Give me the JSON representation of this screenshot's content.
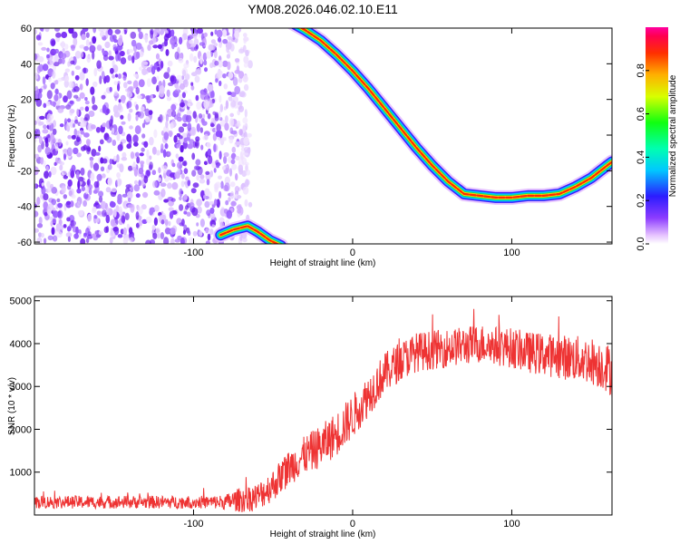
{
  "title": "YM08.2026.046.02.10.E11",
  "chart_data": [
    {
      "type": "heatmap",
      "title": "YM08.2026.046.02.10.E11",
      "xlabel": "Height of straight line (km)",
      "ylabel": "Frequency (Hz)",
      "xlim": [
        -200,
        163
      ],
      "ylim": [
        -61,
        60
      ],
      "xticks": [
        -100,
        0,
        100
      ],
      "xtick_labels": [
        "-100",
        "0",
        "100"
      ],
      "yticks": [
        -60,
        -40,
        -20,
        0,
        20,
        40,
        60
      ],
      "ytick_labels": [
        "-60",
        "-40",
        "-20",
        "0",
        "20",
        "40",
        "60"
      ],
      "colorbar": {
        "label": "Normalized spectral amplitude",
        "range": [
          0,
          1
        ],
        "ticks": [
          0.0,
          0.2,
          0.4,
          0.6,
          0.8
        ],
        "tick_labels": [
          "0.0",
          "0.2",
          "0.4",
          "0.6",
          "0.8"
        ]
      },
      "noise_region_x": [
        -200,
        -70
      ],
      "trace": {
        "x": [
          -83,
          -75,
          -66,
          -60,
          -52,
          -45,
          -40,
          -30,
          -20,
          -10,
          0,
          10,
          20,
          30,
          40,
          50,
          60,
          70,
          80,
          90,
          100,
          110,
          120,
          130,
          140,
          150,
          160,
          163
        ],
        "frequency": [
          -56,
          -53,
          -51,
          -54,
          -59,
          -62,
          64,
          59,
          53,
          45,
          36,
          26,
          15,
          4,
          -7,
          -17,
          -26,
          -33,
          -34,
          -35,
          -35,
          -34,
          -34,
          -33,
          -29,
          -24,
          -17,
          -15
        ]
      }
    },
    {
      "type": "line",
      "xlabel": "Height of straight line (km)",
      "ylabel": "SNR (10 * v/v)",
      "xlim": [
        -200,
        163
      ],
      "ylim": [
        0,
        5100
      ],
      "xticks": [
        -100,
        0,
        100
      ],
      "xtick_labels": [
        "-100",
        "0",
        "100"
      ],
      "yticks": [
        1000,
        2000,
        3000,
        4000,
        5000
      ],
      "ytick_labels": [
        "1000",
        "2000",
        "3000",
        "4000",
        "5000"
      ],
      "series": [
        {
          "name": "SNR",
          "color": "#ee3333",
          "x": [
            -200,
            -160,
            -120,
            -90,
            -80,
            -70,
            -60,
            -50,
            -40,
            -30,
            -20,
            -10,
            0,
            10,
            20,
            30,
            40,
            50,
            60,
            70,
            80,
            90,
            100,
            110,
            120,
            130,
            140,
            150,
            160,
            163
          ],
          "values": [
            300,
            300,
            300,
            300,
            300,
            360,
            420,
            700,
            1100,
            1400,
            1600,
            1900,
            2300,
            2800,
            3300,
            3600,
            3800,
            3850,
            3900,
            3950,
            4000,
            3950,
            3900,
            3800,
            3750,
            3700,
            3650,
            3600,
            3450,
            3300
          ],
          "noise_amplitude": [
            150,
            150,
            150,
            150,
            180,
            300,
            330,
            380,
            420,
            450,
            500,
            520,
            520,
            500,
            480,
            470,
            460,
            460,
            450,
            450,
            460,
            460,
            470,
            480,
            500,
            520,
            540,
            560,
            580,
            580
          ]
        }
      ]
    }
  ]
}
